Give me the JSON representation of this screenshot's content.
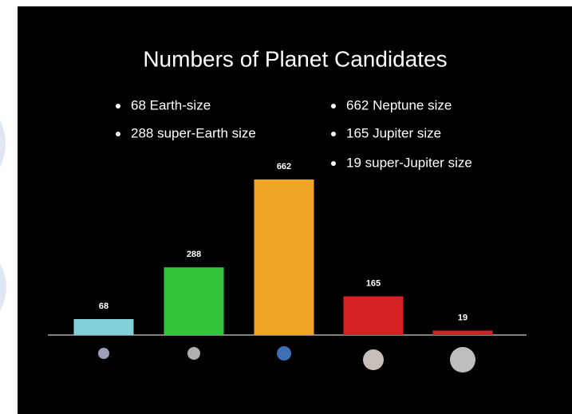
{
  "chart_data": {
    "type": "bar",
    "title": "Numbers of Planet Candidates",
    "annotations": [
      "68 Earth-size",
      "288 super-Earth size",
      "662 Neptune size",
      "165 Jupiter size",
      "19 super-Jupiter size"
    ],
    "categories": [
      null,
      null,
      null,
      null,
      null
    ],
    "values": [
      68,
      288,
      662,
      165,
      19
    ],
    "colors": [
      "#7fd0d8",
      "#33c43a",
      "#f0a526",
      "#d42222",
      "#cc2424"
    ]
  }
}
